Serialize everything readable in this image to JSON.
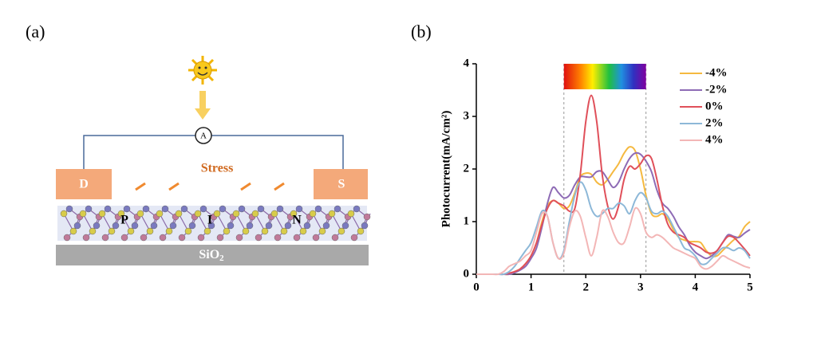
{
  "panels": {
    "a": "(a)",
    "b": "(b)"
  },
  "diagram": {
    "ammeter": "A",
    "source": "D",
    "drain": "S",
    "stress": "Stress",
    "regions": [
      "P",
      "I",
      "N"
    ],
    "substrate": [
      "SiO",
      "2"
    ]
  },
  "chart_data": {
    "type": "line",
    "y_label": "Photocurrent(mA/cm²)",
    "x": [
      0,
      0.1,
      0.2,
      0.3,
      0.4,
      0.5,
      0.6,
      0.7,
      0.8,
      0.9,
      1.0,
      1.1,
      1.2,
      1.3,
      1.4,
      1.5,
      1.6,
      1.7,
      1.8,
      1.9,
      2.0,
      2.1,
      2.2,
      2.3,
      2.4,
      2.5,
      2.6,
      2.7,
      2.8,
      2.9,
      3.0,
      3.1,
      3.2,
      3.3,
      3.4,
      3.5,
      3.6,
      3.7,
      3.8,
      3.9,
      4.0,
      4.1,
      4.2,
      4.3,
      4.4,
      4.5,
      4.6,
      4.7,
      4.8,
      4.9,
      5.0
    ],
    "series": [
      {
        "name": "-4%",
        "color": "#f5b940",
        "values": [
          0,
          0,
          0,
          0,
          0,
          0,
          0,
          0.05,
          0.1,
          0.2,
          0.35,
          0.6,
          1.0,
          1.3,
          1.4,
          1.35,
          1.25,
          1.3,
          1.55,
          1.85,
          1.92,
          1.9,
          1.75,
          1.7,
          1.8,
          1.95,
          2.1,
          2.3,
          2.42,
          2.35,
          2.0,
          1.5,
          1.15,
          1.1,
          1.15,
          1.05,
          0.85,
          0.7,
          0.65,
          0.62,
          0.62,
          0.6,
          0.45,
          0.35,
          0.35,
          0.45,
          0.55,
          0.65,
          0.72,
          0.9,
          1.0
        ]
      },
      {
        "name": "-2%",
        "color": "#8e6bb5",
        "values": [
          0,
          0,
          0,
          0,
          0,
          0,
          0,
          0.03,
          0.08,
          0.15,
          0.3,
          0.5,
          0.9,
          1.35,
          1.65,
          1.55,
          1.45,
          1.5,
          1.7,
          1.85,
          1.85,
          1.85,
          1.95,
          1.95,
          1.8,
          1.65,
          1.75,
          2.0,
          2.2,
          2.3,
          2.28,
          2.15,
          1.95,
          1.6,
          1.35,
          1.25,
          1.1,
          0.9,
          0.75,
          0.55,
          0.42,
          0.35,
          0.3,
          0.35,
          0.45,
          0.6,
          0.75,
          0.72,
          0.7,
          0.78,
          0.85
        ]
      },
      {
        "name": "0%",
        "color": "#e0505a",
        "values": [
          0,
          0,
          0,
          0,
          0,
          0,
          0.02,
          0.05,
          0.1,
          0.2,
          0.35,
          0.6,
          0.95,
          1.25,
          1.4,
          1.35,
          1.3,
          1.2,
          1.25,
          1.9,
          2.9,
          3.4,
          2.9,
          1.9,
          1.3,
          1.05,
          1.3,
          1.8,
          2.05,
          2.0,
          2.1,
          2.25,
          2.2,
          1.8,
          1.3,
          0.95,
          0.8,
          0.75,
          0.7,
          0.6,
          0.55,
          0.5,
          0.42,
          0.4,
          0.45,
          0.6,
          0.72,
          0.7,
          0.6,
          0.48,
          0.35
        ]
      },
      {
        "name": "2%",
        "color": "#8db8d8",
        "values": [
          0,
          0,
          0,
          0,
          0,
          0,
          0.05,
          0.15,
          0.3,
          0.45,
          0.6,
          0.9,
          1.2,
          1.1,
          0.6,
          0.3,
          0.45,
          1.0,
          1.5,
          1.75,
          1.6,
          1.25,
          1.1,
          1.15,
          1.25,
          1.25,
          1.35,
          1.3,
          1.15,
          1.4,
          1.55,
          1.45,
          1.2,
          1.15,
          1.2,
          1.1,
          0.9,
          0.7,
          0.5,
          0.45,
          0.35,
          0.2,
          0.2,
          0.3,
          0.4,
          0.5,
          0.5,
          0.45,
          0.5,
          0.45,
          0.3
        ]
      },
      {
        "name": "4%",
        "color": "#f3b6b6",
        "values": [
          0,
          0,
          0,
          0,
          0,
          0.05,
          0.15,
          0.2,
          0.25,
          0.35,
          0.45,
          0.8,
          1.15,
          1.1,
          0.6,
          0.3,
          0.4,
          0.9,
          1.2,
          1.1,
          0.7,
          0.35,
          0.7,
          1.2,
          1.1,
          0.8,
          0.6,
          0.6,
          0.9,
          1.25,
          1.15,
          0.8,
          0.7,
          0.75,
          0.7,
          0.6,
          0.5,
          0.45,
          0.4,
          0.35,
          0.3,
          0.15,
          0.1,
          0.15,
          0.25,
          0.35,
          0.3,
          0.25,
          0.2,
          0.15,
          0.12
        ]
      }
    ],
    "xlim": [
      0,
      5
    ],
    "ylim": [
      0,
      4
    ],
    "xticks": [
      0,
      1,
      2,
      3,
      4,
      5
    ],
    "yticks": [
      0,
      1,
      2,
      3,
      4
    ],
    "vlines": [
      1.6,
      3.1
    ],
    "hlines": [
      0
    ],
    "legend": "upper right"
  }
}
